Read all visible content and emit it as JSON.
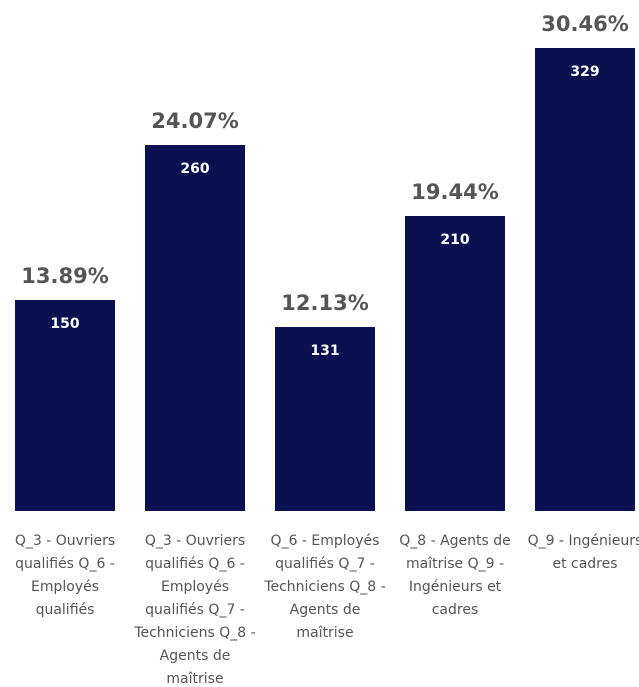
{
  "chart_data": {
    "type": "bar",
    "categories": [
      "Q_3 - Ouvriers qualifiés Q_6 - Employés qualifiés",
      "Q_3 - Ouvriers qualifiés Q_6 - Employés qualifiés Q_7 - Techniciens Q_8 - Agents de maîtrise",
      "Q_6 - Employés qualifiés Q_7 - Techniciens Q_8 - Agents de maîtrise",
      "Q_8 - Agents de maîtrise Q_9 - Ingénieurs et cadres",
      "Q_9 - Ingénieurs et cadres"
    ],
    "values": [
      150,
      260,
      131,
      210,
      329
    ],
    "percent_labels": [
      "13.89%",
      "24.07%",
      "12.13%",
      "19.44%",
      "30.46%"
    ],
    "color": "#0b1150"
  }
}
